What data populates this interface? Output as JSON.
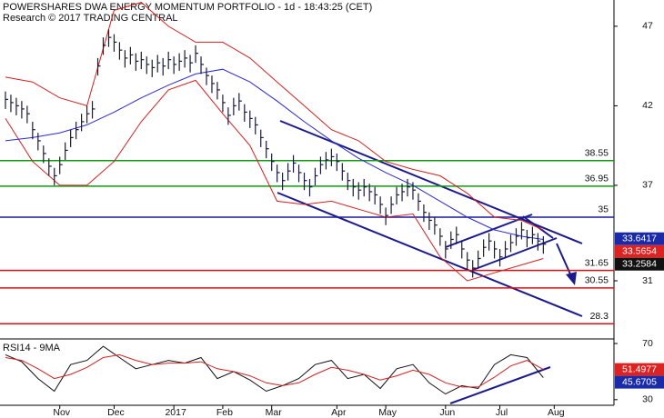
{
  "chart_data": [
    {
      "type": "ohlc",
      "title": "POWERSHARES DWA ENERGY MOMENTUM PORTFOLIO - 1d - 18:43:25 (CET)",
      "subtitle": "Research © 2017 TRADING CENTRAL",
      "color": "#1a1a3a",
      "x": [
        0,
        1,
        2,
        3,
        4,
        5,
        6,
        7,
        8,
        9,
        10,
        11,
        12,
        13,
        14,
        15,
        16,
        17,
        18,
        19,
        20,
        21,
        22,
        23,
        24,
        25,
        26,
        27,
        28,
        29,
        30,
        31,
        32,
        33,
        34,
        35,
        36,
        37,
        38,
        39,
        40,
        41,
        42,
        43,
        44,
        45,
        46,
        47,
        48,
        49,
        50,
        51,
        52,
        53,
        54,
        55,
        56,
        57,
        58,
        59,
        60,
        61,
        62,
        63,
        64,
        65,
        66,
        67,
        68,
        69,
        70,
        71,
        72,
        73,
        74,
        75,
        76,
        77,
        78,
        79,
        80,
        81,
        82,
        83,
        84,
        85,
        86,
        87,
        88,
        89,
        90,
        91,
        92,
        93,
        94,
        95,
        96,
        97,
        98,
        99
      ],
      "high": [
        42.9,
        42.7,
        42.5,
        42.3,
        42.0,
        41.0,
        40.3,
        39.5,
        38.7,
        38.1,
        38.8,
        39.7,
        40.5,
        41.0,
        41.5,
        42.0,
        42.3,
        45.0,
        46.3,
        46.8,
        46.5,
        46.0,
        45.5,
        45.7,
        45.3,
        45.4,
        45.1,
        44.9,
        45.2,
        45.0,
        45.4,
        45.1,
        45.3,
        45.5,
        45.2,
        45.8,
        45.1,
        44.4,
        43.9,
        43.5,
        42.7,
        41.9,
        42.5,
        42.8,
        42.1,
        41.7,
        41.3,
        40.5,
        39.8,
        39.0,
        38.3,
        37.8,
        38.4,
        38.9,
        38.3,
        37.8,
        37.4,
        38.1,
        38.8,
        39.1,
        39.3,
        39.0,
        38.4,
        37.8,
        37.4,
        37.2,
        37.4,
        37.1,
        36.9,
        36.3,
        35.6,
        36.3,
        36.9,
        37.1,
        37.4,
        37.2,
        36.5,
        35.8,
        35.3,
        35.0,
        34.3,
        33.5,
        34.1,
        34.4,
        33.5,
        32.8,
        32.3,
        32.9,
        33.6,
        34.0,
        33.5,
        33.0,
        33.5,
        33.9,
        34.3,
        34.7,
        34.2,
        34.4,
        34.0,
        33.8
      ],
      "low": [
        41.8,
        41.6,
        41.4,
        41.2,
        40.9,
        39.9,
        39.2,
        38.4,
        37.6,
        37.0,
        37.7,
        38.6,
        39.4,
        39.9,
        40.4,
        40.9,
        41.2,
        43.9,
        45.2,
        45.7,
        45.4,
        44.9,
        44.4,
        44.6,
        44.2,
        44.3,
        44.0,
        43.8,
        44.1,
        43.9,
        44.3,
        44.0,
        44.2,
        44.4,
        44.1,
        44.7,
        44.0,
        43.3,
        42.8,
        42.4,
        41.6,
        40.8,
        41.4,
        41.7,
        41.0,
        40.6,
        40.2,
        39.4,
        38.7,
        37.9,
        37.2,
        36.7,
        37.3,
        37.8,
        37.2,
        36.7,
        36.3,
        37.0,
        37.7,
        38.0,
        38.2,
        37.9,
        37.3,
        36.7,
        36.3,
        36.1,
        36.3,
        36.0,
        35.8,
        35.2,
        34.5,
        35.2,
        35.8,
        36.0,
        36.3,
        36.1,
        35.4,
        34.7,
        34.2,
        33.9,
        33.2,
        32.4,
        33.0,
        33.3,
        32.4,
        31.7,
        31.2,
        31.8,
        32.5,
        32.9,
        32.4,
        31.9,
        32.4,
        32.8,
        33.2,
        33.6,
        33.1,
        33.3,
        32.9,
        32.7
      ],
      "close": [
        42.4,
        42.2,
        42.0,
        41.8,
        41.5,
        40.5,
        39.8,
        39.0,
        38.2,
        37.6,
        38.3,
        39.2,
        40.0,
        40.5,
        41.0,
        41.5,
        41.8,
        44.5,
        45.8,
        46.3,
        46.0,
        45.5,
        45.0,
        45.2,
        44.8,
        44.9,
        44.6,
        44.4,
        44.7,
        44.5,
        44.9,
        44.6,
        44.8,
        45.0,
        44.7,
        45.3,
        44.6,
        43.9,
        43.4,
        43.0,
        42.2,
        41.4,
        42.0,
        42.3,
        41.6,
        41.2,
        40.8,
        40.0,
        39.3,
        38.5,
        37.8,
        37.3,
        37.9,
        38.4,
        37.8,
        37.3,
        36.9,
        37.6,
        38.3,
        38.6,
        38.8,
        38.5,
        37.9,
        37.3,
        36.9,
        36.7,
        36.9,
        36.6,
        36.4,
        35.8,
        35.1,
        35.8,
        36.4,
        36.6,
        36.9,
        36.7,
        36.0,
        35.3,
        34.8,
        34.5,
        33.8,
        33.0,
        33.6,
        33.9,
        33.0,
        32.3,
        31.8,
        32.4,
        33.1,
        33.5,
        33.0,
        32.5,
        33.0,
        33.4,
        33.8,
        34.2,
        33.7,
        33.9,
        33.5,
        33.3
      ],
      "overlays": [
        {
          "color": "#d42020",
          "x": [
            0,
            5,
            10,
            15,
            20,
            25,
            30,
            35,
            40,
            45,
            50,
            55,
            60,
            65,
            70,
            75,
            80,
            85,
            90,
            95,
            99
          ],
          "values": [
            43.8,
            43.5,
            42.5,
            42.0,
            48.0,
            48.5,
            47.0,
            46.0,
            46.0,
            45.0,
            43.5,
            42.0,
            40.5,
            39.8,
            38.5,
            38.0,
            37.6,
            36.5,
            35.0,
            34.8,
            34.2
          ]
        },
        {
          "color": "#d42020",
          "x": [
            0,
            5,
            10,
            15,
            20,
            25,
            30,
            35,
            40,
            45,
            50,
            55,
            60,
            65,
            70,
            75,
            80,
            85,
            90,
            95,
            99
          ],
          "values": [
            41.2,
            38.5,
            37.0,
            37.0,
            38.5,
            41.0,
            43.0,
            43.6,
            41.5,
            39.5,
            36.0,
            35.8,
            36.0,
            35.5,
            35.0,
            35.2,
            32.5,
            31.0,
            31.5,
            32.0,
            32.4
          ]
        },
        {
          "color": "#2a2ad0",
          "x": [
            0,
            5,
            10,
            15,
            20,
            25,
            30,
            35,
            40,
            45,
            50,
            55,
            60,
            65,
            70,
            75,
            80,
            85,
            90,
            95,
            99
          ],
          "values": [
            39.8,
            40.0,
            40.3,
            40.8,
            41.6,
            42.5,
            43.3,
            44.0,
            44.3,
            43.5,
            42.3,
            41.0,
            39.8,
            38.7,
            37.8,
            37.0,
            36.0,
            35.0,
            34.2,
            33.8,
            33.6
          ]
        }
      ],
      "levels": [
        {
          "value": 38.55,
          "color": "#119911"
        },
        {
          "value": 36.95,
          "color": "#119911"
        },
        {
          "value": 35,
          "color": "#1a1a9c"
        },
        {
          "value": 31.65,
          "color": "#dd1111"
        },
        {
          "value": 30.55,
          "color": "#dd1111"
        },
        {
          "value": 28.3,
          "color": "#dd1111"
        }
      ],
      "tags": [
        {
          "value": 33.6417,
          "color": "#1a2aa8"
        },
        {
          "value": 33.5654,
          "color": "#dd2222"
        },
        {
          "value": 33.2584,
          "color": "#111111"
        }
      ],
      "xlim": [
        -1,
        112
      ],
      "ylim": [
        27.4,
        48.65
      ],
      "yticks": [
        47,
        42,
        37,
        31
      ]
    },
    {
      "type": "rsi",
      "title": "RSI14 - 9MA",
      "x": [
        0,
        3,
        6,
        9,
        12,
        15,
        18,
        21,
        24,
        27,
        30,
        33,
        36,
        39,
        42,
        45,
        48,
        51,
        54,
        57,
        60,
        63,
        66,
        69,
        72,
        75,
        78,
        81,
        84,
        87,
        90,
        93,
        96,
        99
      ],
      "series": [
        {
          "color": "#111111",
          "values": [
            62,
            57,
            45,
            36,
            55,
            58,
            68,
            60,
            52,
            55,
            58,
            56,
            60,
            45,
            50,
            44,
            36,
            40,
            45,
            55,
            58,
            45,
            48,
            38,
            52,
            55,
            42,
            34,
            40,
            38,
            55,
            62,
            60,
            45.7
          ]
        },
        {
          "color": "#d42020",
          "values": [
            60,
            58,
            52,
            45,
            48,
            53,
            60,
            62,
            58,
            55,
            56,
            56,
            57,
            52,
            50,
            47,
            42,
            40,
            42,
            48,
            53,
            51,
            48,
            44,
            47,
            51,
            48,
            42,
            39,
            39,
            46,
            54,
            58,
            51.5
          ]
        }
      ],
      "tags": [
        {
          "value": 51.4977,
          "color": "#dd2222"
        },
        {
          "value": 45.6705,
          "color": "#1a2aa8"
        }
      ],
      "xlim": [
        -1,
        112
      ],
      "ylim": [
        26,
        72.6
      ],
      "yticks": [
        70,
        30
      ],
      "xticks": [
        {
          "value": 10,
          "label": "Nov"
        },
        {
          "value": 20,
          "label": "Dec"
        },
        {
          "value": 31,
          "label": "2017"
        },
        {
          "value": 40,
          "label": "Feb"
        },
        {
          "value": 49,
          "label": "Mar"
        },
        {
          "value": 61,
          "label": "Apr"
        },
        {
          "value": 70,
          "label": "May"
        },
        {
          "value": 81,
          "label": "Jun"
        },
        {
          "value": 91,
          "label": "Jul"
        },
        {
          "value": 101,
          "label": "Aug"
        }
      ]
    }
  ]
}
